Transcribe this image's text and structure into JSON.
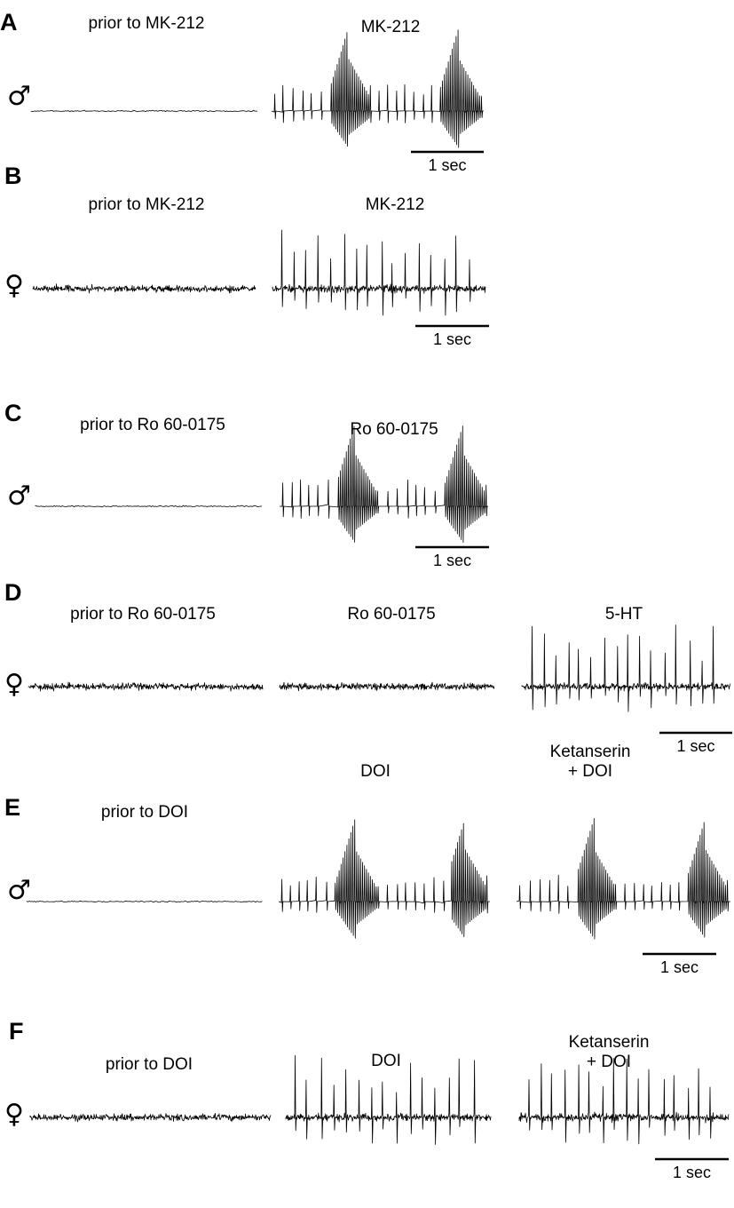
{
  "symbols": {
    "male": "♂",
    "female": "♀"
  },
  "scale_bar_label": "1 sec",
  "panels": [
    {
      "letter": "A",
      "sex": "male",
      "traces": [
        {
          "label": "prior to MK-212",
          "activity": "silent"
        },
        {
          "label": "MK-212",
          "activity": "bursting"
        }
      ]
    },
    {
      "letter": "B",
      "sex": "female",
      "traces": [
        {
          "label": "prior to MK-212",
          "activity": "noise"
        },
        {
          "label": "MK-212",
          "activity": "spiking"
        }
      ]
    },
    {
      "letter": "C",
      "sex": "male",
      "traces": [
        {
          "label": "prior to Ro 60-0175",
          "activity": "silent"
        },
        {
          "label": "Ro 60-0175",
          "activity": "bursting"
        }
      ]
    },
    {
      "letter": "D",
      "sex": "female",
      "traces": [
        {
          "label": "prior to Ro 60-0175",
          "activity": "noise"
        },
        {
          "label": "Ro 60-0175",
          "activity": "noise"
        },
        {
          "label": "5-HT",
          "activity": "spiking"
        }
      ]
    },
    {
      "letter": "E",
      "sex": "male",
      "traces": [
        {
          "label": "prior to DOI",
          "activity": "silent"
        },
        {
          "label": "DOI",
          "activity": "bursting"
        },
        {
          "label": "Ketanserin\n+ DOI",
          "activity": "bursting"
        }
      ]
    },
    {
      "letter": "F",
      "sex": "female",
      "traces": [
        {
          "label": "prior to DOI",
          "activity": "noise"
        },
        {
          "label": "DOI",
          "activity": "spiking"
        },
        {
          "label": "Ketanserin\n+ DOI",
          "activity": "spiking"
        }
      ]
    }
  ]
}
